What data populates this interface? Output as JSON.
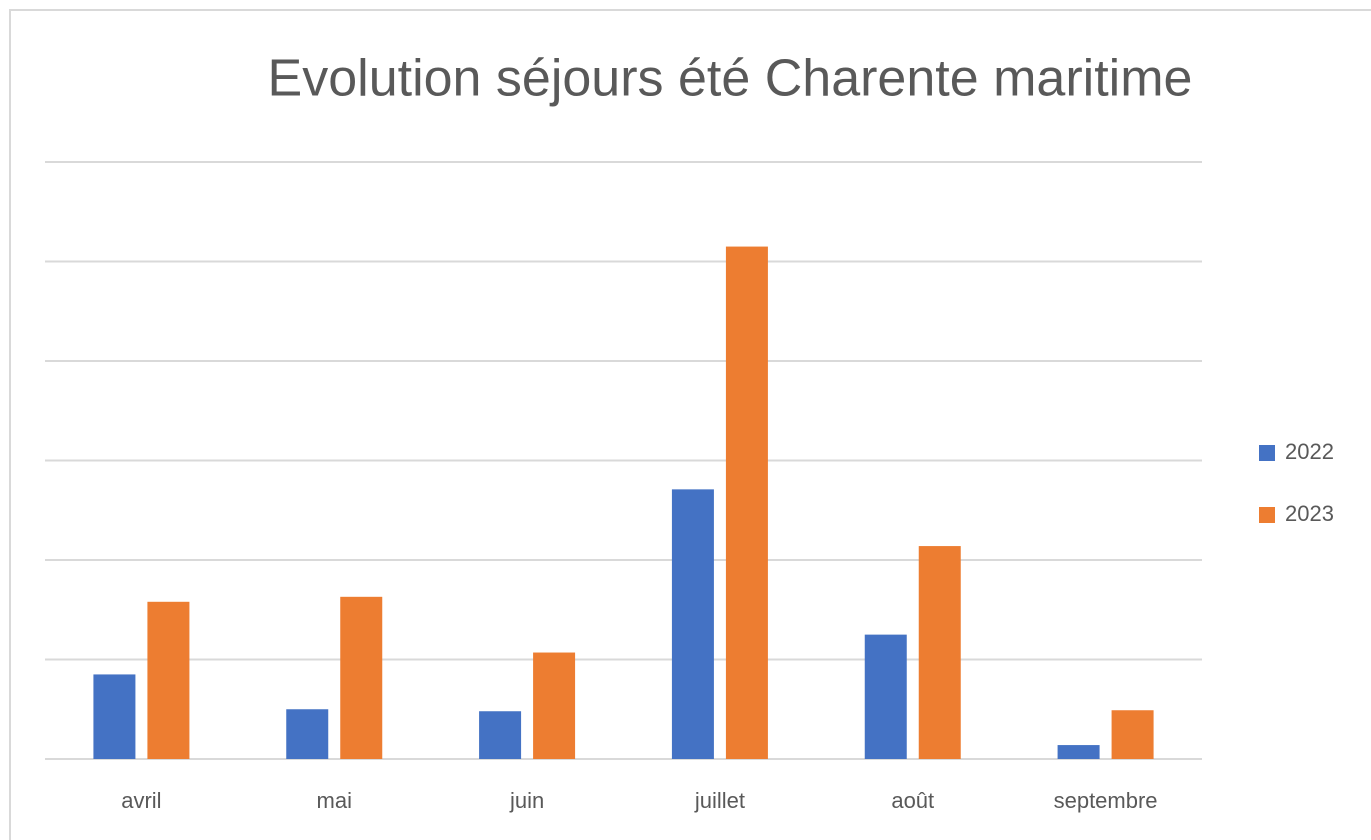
{
  "chart_data": {
    "type": "bar",
    "title": "Evolution séjours été Charente maritime",
    "categories": [
      "avril",
      "mai",
      "juin",
      "juillet",
      "août",
      "septembre"
    ],
    "series": [
      {
        "name": "2022",
        "color": "#4472c4",
        "values": [
          0.85,
          0.5,
          0.48,
          2.71,
          1.25,
          0.14
        ]
      },
      {
        "name": "2023",
        "color": "#ed7d31",
        "values": [
          1.58,
          1.63,
          1.07,
          5.15,
          2.14,
          0.49
        ]
      }
    ],
    "ylim": [
      0,
      6
    ],
    "yticks": [
      0,
      1,
      2,
      3,
      4,
      5,
      6
    ],
    "grid": true,
    "legend": "right"
  }
}
